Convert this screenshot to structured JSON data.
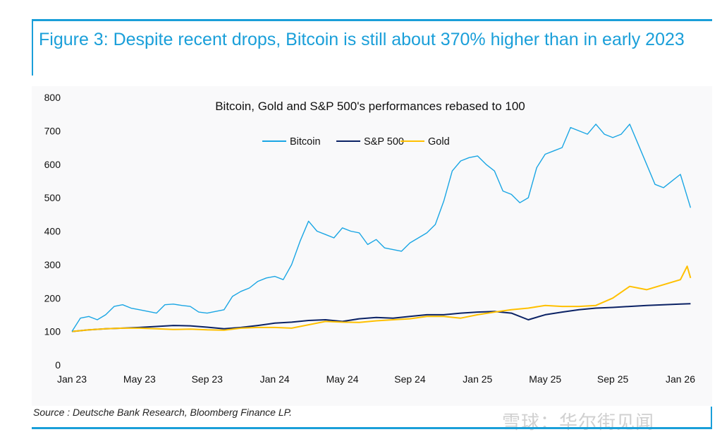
{
  "figure_title": "Figure 3: Despite recent drops, Bitcoin is still about 370% higher than in early 2023",
  "source": "Source : Deutsche Bank Research, Bloomberg Finance LP.",
  "watermark": "雪球：华尔街见闻",
  "chart_data": {
    "type": "line",
    "title": "Bitcoin, Gold and S&P 500's performances rebased to 100",
    "xlabel": "",
    "ylabel": "",
    "x_unit": "months since Jan 2023",
    "xlim": [
      0,
      36.6
    ],
    "ylim": [
      0,
      800
    ],
    "yticks": [
      0,
      100,
      200,
      300,
      400,
      500,
      600,
      700,
      800
    ],
    "xticks": [
      {
        "label": "Jan 23",
        "value": 0
      },
      {
        "label": "May 23",
        "value": 4
      },
      {
        "label": "Sep 23",
        "value": 8
      },
      {
        "label": "Jan 24",
        "value": 12
      },
      {
        "label": "May 24",
        "value": 16
      },
      {
        "label": "Sep 24",
        "value": 20
      },
      {
        "label": "Jan 25",
        "value": 24
      },
      {
        "label": "May 25",
        "value": 28
      },
      {
        "label": "Sep 25",
        "value": 32
      },
      {
        "label": "Jan 26",
        "value": 36
      }
    ],
    "grid": false,
    "legend": "top-center",
    "series": [
      {
        "name": "Bitcoin",
        "color": "#1aa6e4",
        "x": [
          0,
          0.5,
          1,
          1.5,
          2,
          2.5,
          3,
          3.5,
          4,
          4.5,
          5,
          5.5,
          6,
          6.5,
          7,
          7.5,
          8,
          8.5,
          9,
          9.5,
          10,
          10.5,
          11,
          11.5,
          12,
          12.5,
          13,
          13.5,
          14,
          14.5,
          15,
          15.5,
          16,
          16.5,
          17,
          17.5,
          18,
          18.5,
          19,
          19.5,
          20,
          20.5,
          21,
          21.5,
          22,
          22.5,
          23,
          23.5,
          24,
          24.5,
          25,
          25.5,
          26,
          26.5,
          27,
          27.5,
          28,
          28.5,
          29,
          29.5,
          30,
          30.5,
          31,
          31.5,
          32,
          32.5,
          33,
          33.5,
          34,
          34.5,
          35,
          35.5,
          36,
          36.6
        ],
        "values": [
          100,
          140,
          145,
          135,
          150,
          175,
          180,
          170,
          165,
          160,
          155,
          180,
          182,
          178,
          175,
          158,
          155,
          160,
          165,
          205,
          220,
          230,
          250,
          260,
          265,
          255,
          300,
          370,
          430,
          400,
          390,
          380,
          410,
          400,
          395,
          360,
          375,
          350,
          345,
          340,
          365,
          380,
          395,
          420,
          490,
          580,
          610,
          620,
          625,
          600,
          580,
          520,
          510,
          485,
          500,
          590,
          630,
          640,
          650,
          710,
          700,
          690,
          720,
          690,
          680,
          690,
          720,
          660,
          600,
          540,
          530,
          550,
          570,
          470
        ]
      },
      {
        "name": "S&P 500",
        "color": "#0b2265",
        "x": [
          0,
          1,
          2,
          3,
          4,
          5,
          6,
          7,
          8,
          9,
          10,
          11,
          12,
          13,
          14,
          15,
          16,
          17,
          18,
          19,
          20,
          21,
          22,
          23,
          24,
          25,
          26,
          27,
          28,
          29,
          30,
          31,
          32,
          33,
          34,
          35,
          36,
          36.6
        ],
        "values": [
          100,
          105,
          108,
          110,
          112,
          115,
          118,
          117,
          113,
          108,
          112,
          118,
          125,
          128,
          133,
          135,
          130,
          138,
          142,
          140,
          145,
          150,
          150,
          155,
          158,
          160,
          155,
          135,
          150,
          158,
          165,
          170,
          172,
          175,
          178,
          180,
          182,
          183
        ]
      },
      {
        "name": "Gold",
        "color": "#ffc000",
        "x": [
          0,
          1,
          2,
          3,
          4,
          5,
          6,
          7,
          8,
          9,
          10,
          11,
          12,
          13,
          14,
          15,
          16,
          17,
          18,
          19,
          20,
          21,
          22,
          23,
          24,
          25,
          26,
          27,
          28,
          29,
          30,
          31,
          32,
          33,
          34,
          35,
          36,
          36.4,
          36.6
        ],
        "values": [
          100,
          105,
          108,
          110,
          110,
          108,
          106,
          107,
          105,
          104,
          110,
          112,
          112,
          110,
          120,
          130,
          128,
          127,
          132,
          135,
          138,
          145,
          145,
          140,
          150,
          158,
          165,
          170,
          178,
          175,
          175,
          178,
          200,
          235,
          225,
          240,
          255,
          295,
          260
        ]
      }
    ]
  }
}
